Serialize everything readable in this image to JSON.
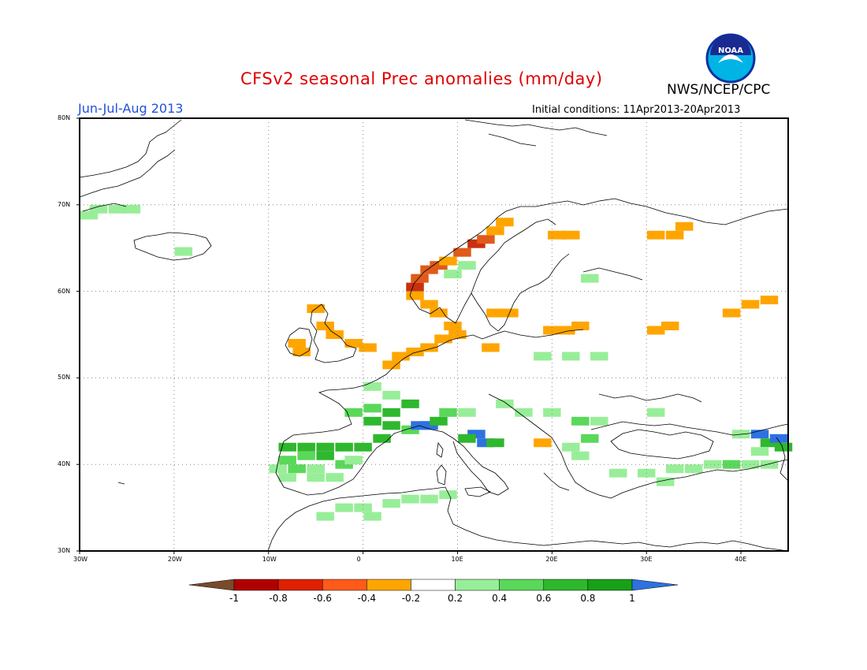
{
  "title": "CFSv2 seasonal Prec anomalies (mm/day)",
  "organization": "NWS/NCEP/CPC",
  "logo_text": "NOAA",
  "season": "Jun-Jul-Aug 2013",
  "initial_conditions": "Initial conditions: 11Apr2013-20Apr2013",
  "axes": {
    "lon_labels": [
      "30W",
      "20W",
      "10W",
      "0",
      "10E",
      "20E",
      "30E",
      "40E"
    ],
    "lat_labels": [
      "80N",
      "70N",
      "60N",
      "50N",
      "40N",
      "30N"
    ],
    "lon_range": [
      -30,
      45
    ],
    "lat_range": [
      30,
      80
    ]
  },
  "colorbar": {
    "labels": [
      "-1",
      "-0.8",
      "-0.6",
      "-0.4",
      "-0.2",
      "0.2",
      "0.4",
      "0.6",
      "0.8",
      "1"
    ],
    "colors": [
      "#7a4a2a",
      "#b00000",
      "#e02000",
      "#ff5a1a",
      "#ffa500",
      "#ffffff",
      "#98ee98",
      "#5ad85a",
      "#2eb82e",
      "#18a018",
      "#2d72e0"
    ]
  },
  "anomaly_colors": {
    "orange": "#ffa500",
    "red": "#e05a1a",
    "darkred": "#c83010",
    "lightgreen": "#98ee98",
    "green": "#5ad85a",
    "darkgreen": "#2eb82e",
    "blue": "#2d72e0"
  },
  "anomaly_cells": [
    {
      "lon": -28,
      "lat": 69.5,
      "c": "lightgreen"
    },
    {
      "lon": -26,
      "lat": 69.5,
      "c": "lightgreen"
    },
    {
      "lon": -24.5,
      "lat": 69.5,
      "c": "lightgreen"
    },
    {
      "lon": -29,
      "lat": 68.8,
      "c": "lightgreen"
    },
    {
      "lon": -19,
      "lat": 64.6,
      "c": "lightgreen"
    },
    {
      "lon": 5.5,
      "lat": 60.5,
      "c": "darkred"
    },
    {
      "lon": 6,
      "lat": 61.5,
      "c": "red"
    },
    {
      "lon": 7,
      "lat": 62.5,
      "c": "red"
    },
    {
      "lon": 8,
      "lat": 63,
      "c": "red"
    },
    {
      "lon": 9,
      "lat": 63.5,
      "c": "orange"
    },
    {
      "lon": 10.5,
      "lat": 64.5,
      "c": "red"
    },
    {
      "lon": 12,
      "lat": 65.5,
      "c": "darkred"
    },
    {
      "lon": 13,
      "lat": 66,
      "c": "red"
    },
    {
      "lon": 14,
      "lat": 67,
      "c": "orange"
    },
    {
      "lon": 15,
      "lat": 68,
      "c": "orange"
    },
    {
      "lon": 5.5,
      "lat": 59.5,
      "c": "orange"
    },
    {
      "lon": 7,
      "lat": 58.5,
      "c": "orange"
    },
    {
      "lon": 8,
      "lat": 57.5,
      "c": "orange"
    },
    {
      "lon": 9.5,
      "lat": 56,
      "c": "orange"
    },
    {
      "lon": 10,
      "lat": 55,
      "c": "orange"
    },
    {
      "lon": 8.5,
      "lat": 54.5,
      "c": "orange"
    },
    {
      "lon": 7,
      "lat": 53.5,
      "c": "orange"
    },
    {
      "lon": 5.5,
      "lat": 53,
      "c": "orange"
    },
    {
      "lon": 4,
      "lat": 52.5,
      "c": "orange"
    },
    {
      "lon": 3,
      "lat": 51.5,
      "c": "orange"
    },
    {
      "lon": 13.5,
      "lat": 53.5,
      "c": "orange"
    },
    {
      "lon": 14,
      "lat": 57.5,
      "c": "orange"
    },
    {
      "lon": 15.5,
      "lat": 57.5,
      "c": "orange"
    },
    {
      "lon": 9.5,
      "lat": 62,
      "c": "lightgreen"
    },
    {
      "lon": 11,
      "lat": 63,
      "c": "lightgreen"
    },
    {
      "lon": 24,
      "lat": 61.5,
      "c": "lightgreen"
    },
    {
      "lon": -5,
      "lat": 58,
      "c": "orange"
    },
    {
      "lon": -4,
      "lat": 56,
      "c": "orange"
    },
    {
      "lon": -3,
      "lat": 55,
      "c": "orange"
    },
    {
      "lon": -1,
      "lat": 54,
      "c": "orange"
    },
    {
      "lon": 0.5,
      "lat": 53.5,
      "c": "orange"
    },
    {
      "lon": -7,
      "lat": 54,
      "c": "orange"
    },
    {
      "lon": -6.5,
      "lat": 53,
      "c": "orange"
    },
    {
      "lon": 20.5,
      "lat": 66.5,
      "c": "orange"
    },
    {
      "lon": 22,
      "lat": 66.5,
      "c": "orange"
    },
    {
      "lon": 33,
      "lat": 66.5,
      "c": "orange"
    },
    {
      "lon": 31,
      "lat": 66.5,
      "c": "orange"
    },
    {
      "lon": 34,
      "lat": 67.5,
      "c": "orange"
    },
    {
      "lon": 20,
      "lat": 55.5,
      "c": "orange"
    },
    {
      "lon": 21.5,
      "lat": 55.5,
      "c": "orange"
    },
    {
      "lon": 23,
      "lat": 56,
      "c": "orange"
    },
    {
      "lon": 31,
      "lat": 55.5,
      "c": "orange"
    },
    {
      "lon": 32.5,
      "lat": 56,
      "c": "orange"
    },
    {
      "lon": 39,
      "lat": 57.5,
      "c": "orange"
    },
    {
      "lon": 41,
      "lat": 58.5,
      "c": "orange"
    },
    {
      "lon": 43,
      "lat": 59,
      "c": "orange"
    },
    {
      "lon": 19,
      "lat": 42.5,
      "c": "orange"
    },
    {
      "lon": 19,
      "lat": 52.5,
      "c": "lightgreen"
    },
    {
      "lon": 22,
      "lat": 52.5,
      "c": "lightgreen"
    },
    {
      "lon": 25,
      "lat": 52.5,
      "c": "lightgreen"
    },
    {
      "lon": 1,
      "lat": 49,
      "c": "lightgreen"
    },
    {
      "lon": 3,
      "lat": 48,
      "c": "lightgreen"
    },
    {
      "lon": 5,
      "lat": 47,
      "c": "darkgreen"
    },
    {
      "lon": 3,
      "lat": 46,
      "c": "darkgreen"
    },
    {
      "lon": 1,
      "lat": 46.5,
      "c": "green"
    },
    {
      "lon": -1,
      "lat": 46,
      "c": "green"
    },
    {
      "lon": 1,
      "lat": 45,
      "c": "darkgreen"
    },
    {
      "lon": 3,
      "lat": 44.5,
      "c": "darkgreen"
    },
    {
      "lon": 5,
      "lat": 44,
      "c": "green"
    },
    {
      "lon": 6,
      "lat": 44.5,
      "c": "blue"
    },
    {
      "lon": 7,
      "lat": 44.5,
      "c": "blue"
    },
    {
      "lon": 8,
      "lat": 45,
      "c": "darkgreen"
    },
    {
      "lon": 9,
      "lat": 46,
      "c": "green"
    },
    {
      "lon": 11,
      "lat": 46,
      "c": "lightgreen"
    },
    {
      "lon": 12,
      "lat": 43.5,
      "c": "blue"
    },
    {
      "lon": 13,
      "lat": 42.5,
      "c": "blue"
    },
    {
      "lon": 14,
      "lat": 42.5,
      "c": "darkgreen"
    },
    {
      "lon": 11,
      "lat": 43,
      "c": "darkgreen"
    },
    {
      "lon": 15,
      "lat": 47,
      "c": "lightgreen"
    },
    {
      "lon": 17,
      "lat": 46,
      "c": "lightgreen"
    },
    {
      "lon": 20,
      "lat": 46,
      "c": "lightgreen"
    },
    {
      "lon": 23,
      "lat": 45,
      "c": "green"
    },
    {
      "lon": 25,
      "lat": 45,
      "c": "lightgreen"
    },
    {
      "lon": 24,
      "lat": 43,
      "c": "green"
    },
    {
      "lon": 22,
      "lat": 42,
      "c": "lightgreen"
    },
    {
      "lon": 23,
      "lat": 41,
      "c": "lightgreen"
    },
    {
      "lon": -8,
      "lat": 42,
      "c": "darkgreen"
    },
    {
      "lon": -6,
      "lat": 42,
      "c": "darkgreen"
    },
    {
      "lon": -4,
      "lat": 42,
      "c": "darkgreen"
    },
    {
      "lon": -2,
      "lat": 42,
      "c": "darkgreen"
    },
    {
      "lon": 0,
      "lat": 42,
      "c": "darkgreen"
    },
    {
      "lon": 2,
      "lat": 43,
      "c": "darkgreen"
    },
    {
      "lon": -6,
      "lat": 41,
      "c": "green"
    },
    {
      "lon": -4,
      "lat": 41,
      "c": "darkgreen"
    },
    {
      "lon": -2,
      "lat": 40,
      "c": "green"
    },
    {
      "lon": -5,
      "lat": 39.5,
      "c": "lightgreen"
    },
    {
      "lon": -7,
      "lat": 39.5,
      "c": "green"
    },
    {
      "lon": -3,
      "lat": 38.5,
      "c": "lightgreen"
    },
    {
      "lon": -5,
      "lat": 38.5,
      "c": "lightgreen"
    },
    {
      "lon": -1,
      "lat": 40.5,
      "c": "lightgreen"
    },
    {
      "lon": -8,
      "lat": 38.5,
      "c": "lightgreen"
    },
    {
      "lon": -9,
      "lat": 39.5,
      "c": "lightgreen"
    },
    {
      "lon": -8,
      "lat": 40.5,
      "c": "green"
    },
    {
      "lon": -2,
      "lat": 35,
      "c": "lightgreen"
    },
    {
      "lon": 0,
      "lat": 35,
      "c": "lightgreen"
    },
    {
      "lon": 3,
      "lat": 35.5,
      "c": "lightgreen"
    },
    {
      "lon": 5,
      "lat": 36,
      "c": "lightgreen"
    },
    {
      "lon": 7,
      "lat": 36,
      "c": "lightgreen"
    },
    {
      "lon": 9,
      "lat": 36.5,
      "c": "lightgreen"
    },
    {
      "lon": -4,
      "lat": 34,
      "c": "lightgreen"
    },
    {
      "lon": 1,
      "lat": 34,
      "c": "lightgreen"
    },
    {
      "lon": 33,
      "lat": 39.5,
      "c": "lightgreen"
    },
    {
      "lon": 35,
      "lat": 39.5,
      "c": "lightgreen"
    },
    {
      "lon": 37,
      "lat": 40,
      "c": "lightgreen"
    },
    {
      "lon": 39,
      "lat": 40,
      "c": "green"
    },
    {
      "lon": 41,
      "lat": 40,
      "c": "lightgreen"
    },
    {
      "lon": 43,
      "lat": 40,
      "c": "lightgreen"
    },
    {
      "lon": 30,
      "lat": 39,
      "c": "lightgreen"
    },
    {
      "lon": 32,
      "lat": 38,
      "c": "lightgreen"
    },
    {
      "lon": 27,
      "lat": 39,
      "c": "lightgreen"
    },
    {
      "lon": 40,
      "lat": 43.5,
      "c": "lightgreen"
    },
    {
      "lon": 42,
      "lat": 43.5,
      "c": "blue"
    },
    {
      "lon": 43,
      "lat": 42.5,
      "c": "darkgreen"
    },
    {
      "lon": 44,
      "lat": 43,
      "c": "blue"
    },
    {
      "lon": 44.5,
      "lat": 42,
      "c": "darkgreen"
    },
    {
      "lon": 42,
      "lat": 41.5,
      "c": "lightgreen"
    },
    {
      "lon": 31,
      "lat": 46,
      "c": "lightgreen"
    }
  ]
}
